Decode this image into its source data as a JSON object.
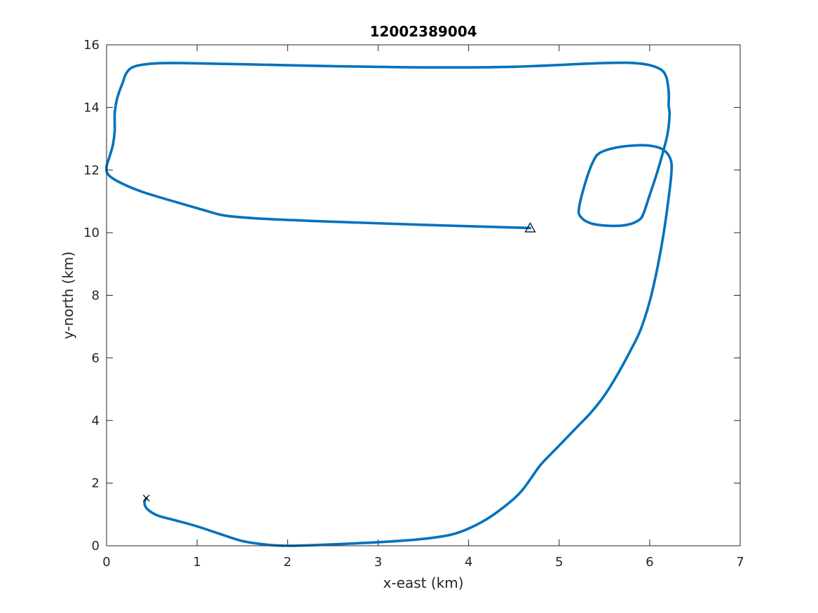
{
  "chart_data": {
    "type": "line",
    "title": "12002389004",
    "xlabel": "x-east (km)",
    "ylabel": "y-north (km)",
    "xlim": [
      0,
      7
    ],
    "ylim": [
      0,
      16
    ],
    "xticks": [
      "0",
      "1",
      "2",
      "3",
      "4",
      "5",
      "6",
      "7"
    ],
    "yticks": [
      "0",
      "2",
      "4",
      "6",
      "8",
      "10",
      "12",
      "14",
      "16"
    ],
    "grid": false,
    "line_color": "#0072BD",
    "start_marker": {
      "symbol": "x",
      "x": 0.44,
      "y": 1.52
    },
    "end_marker": {
      "symbol": "triangle",
      "x": 4.68,
      "y": 10.15
    },
    "series": [
      {
        "x": [
          0.44,
          0.42,
          0.43,
          0.48,
          0.58,
          0.75,
          1.0,
          1.25,
          1.5,
          1.75,
          2.0,
          2.3,
          2.7,
          3.1,
          3.5,
          3.8,
          4.0,
          4.2,
          4.35,
          4.5,
          4.6,
          4.7,
          4.8,
          5.0,
          5.2,
          5.35,
          5.5,
          5.65,
          5.8,
          5.9,
          6.0,
          6.08,
          6.15,
          6.2,
          6.24,
          6.23,
          6.15,
          6.0,
          5.8,
          5.6,
          5.45,
          5.38,
          5.3,
          5.22,
          5.24,
          5.35,
          5.55,
          5.75,
          5.88,
          5.93,
          6.0,
          6.08,
          6.15,
          6.2,
          6.22,
          6.21,
          6.21,
          6.18,
          6.1,
          5.9,
          5.5,
          4.5,
          3.5,
          2.5,
          1.5,
          0.8,
          0.5,
          0.3,
          0.22,
          0.18,
          0.14,
          0.11,
          0.09,
          0.09,
          0.07,
          0.03,
          0.0,
          0.02,
          0.15,
          0.4,
          0.8,
          1.1,
          1.3,
          1.7,
          2.5,
          3.5,
          4.68
        ],
        "y": [
          1.52,
          1.4,
          1.25,
          1.1,
          0.95,
          0.82,
          0.62,
          0.38,
          0.15,
          0.04,
          0.0,
          0.02,
          0.07,
          0.13,
          0.22,
          0.35,
          0.55,
          0.85,
          1.15,
          1.5,
          1.8,
          2.2,
          2.6,
          3.2,
          3.8,
          4.25,
          4.8,
          5.5,
          6.3,
          6.9,
          7.8,
          8.8,
          9.9,
          10.9,
          11.9,
          12.35,
          12.65,
          12.78,
          12.78,
          12.7,
          12.55,
          12.3,
          11.7,
          10.8,
          10.5,
          10.3,
          10.22,
          10.25,
          10.4,
          10.6,
          11.2,
          11.9,
          12.6,
          13.2,
          13.8,
          14.05,
          14.5,
          15.0,
          15.25,
          15.4,
          15.42,
          15.3,
          15.28,
          15.32,
          15.38,
          15.42,
          15.4,
          15.3,
          15.1,
          14.8,
          14.5,
          14.2,
          13.8,
          13.25,
          12.8,
          12.4,
          12.1,
          11.85,
          11.6,
          11.3,
          10.95,
          10.7,
          10.55,
          10.45,
          10.35,
          10.25,
          10.15
        ]
      }
    ]
  }
}
